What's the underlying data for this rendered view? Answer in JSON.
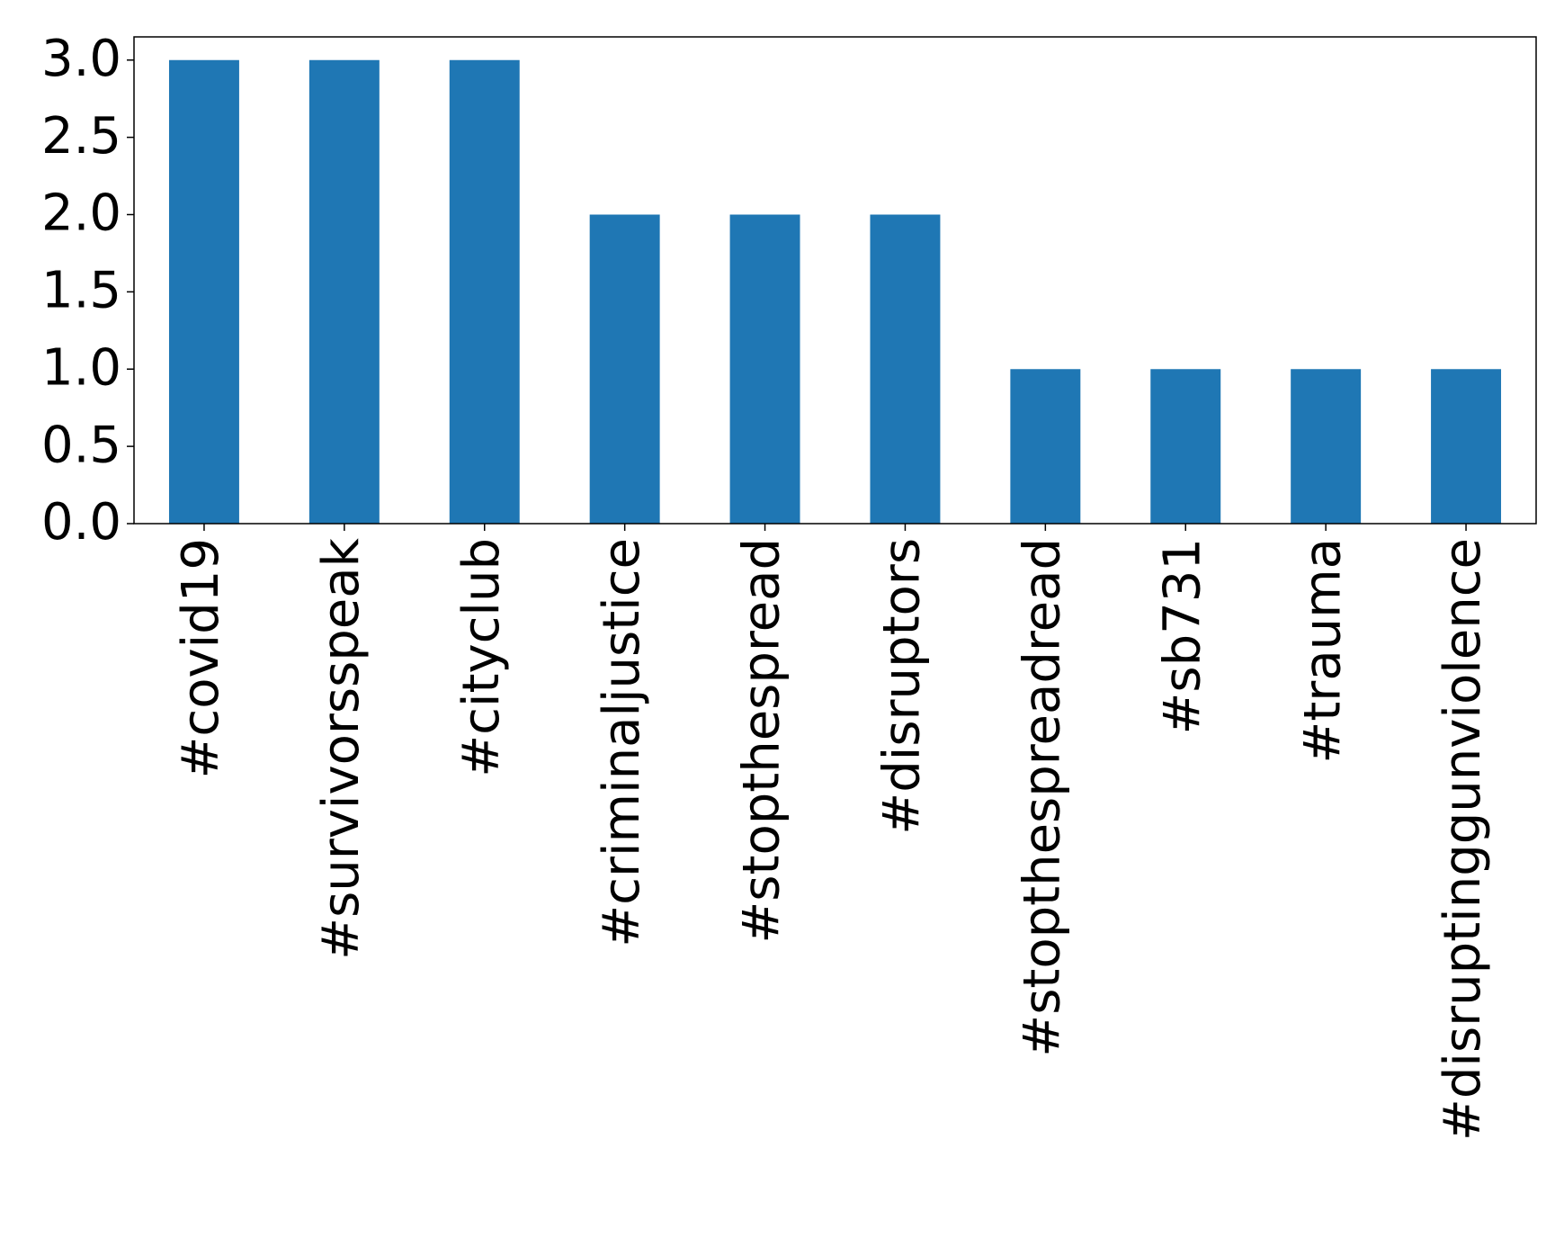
{
  "chart_data": {
    "type": "bar",
    "categories": [
      "#covid19",
      "#survivorsspeak",
      "#cityclub",
      "#criminaljustice",
      "#stopthespread",
      "#disruptors",
      "#stopthespreadread",
      "#sb731",
      "#trauma",
      "#disruptinggunviolence"
    ],
    "values": [
      3,
      3,
      3,
      2,
      2,
      2,
      1,
      1,
      1,
      1
    ],
    "color": "#1f77b4",
    "ylim": [
      0,
      3.15
    ],
    "yticks": [
      {
        "value": 0,
        "label": "0.0"
      },
      0.5,
      {
        "value": 1,
        "label": "1.0"
      },
      1.5,
      {
        "value": 2,
        "label": "2.0"
      },
      2.5,
      {
        "value": 3,
        "label": "3.0"
      }
    ],
    "grid": false
  }
}
